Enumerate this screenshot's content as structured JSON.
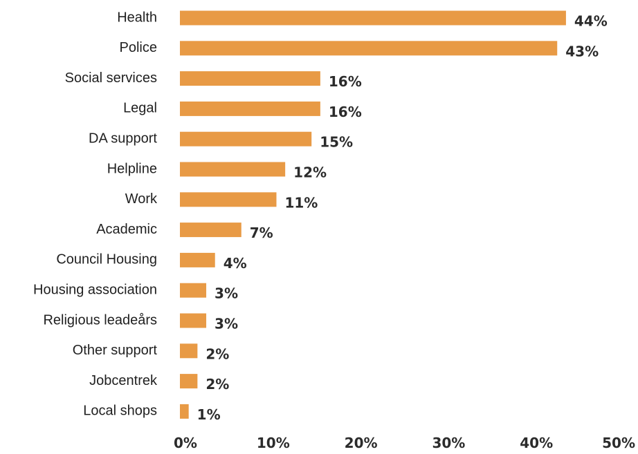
{
  "chart_data": {
    "type": "bar",
    "orientation": "horizontal",
    "categories": [
      "Health",
      "Police",
      "Social services",
      "Legal",
      "DA support",
      "Helpline",
      "Work",
      "Academic",
      "Council Housing",
      "Housing association",
      "Religious leadeårs",
      "Other support",
      "Jobcentrek",
      "Local shops"
    ],
    "values": [
      44,
      43,
      16,
      16,
      15,
      12,
      11,
      7,
      4,
      3,
      3,
      2,
      2,
      1
    ],
    "value_labels": [
      "44%",
      "43%",
      "16%",
      "16%",
      "15%",
      "12%",
      "11%",
      "7%",
      "4%",
      "3%",
      "3%",
      "2%",
      "2%",
      "1%"
    ],
    "xlim": [
      0,
      50
    ],
    "xticks": [
      "0%",
      "10%",
      "20%",
      "30%",
      "40%",
      "50%"
    ],
    "title": "",
    "xlabel": "",
    "ylabel": "",
    "grid": false,
    "bar_color": "#E89A45",
    "label_color": "#2B2B2B"
  }
}
